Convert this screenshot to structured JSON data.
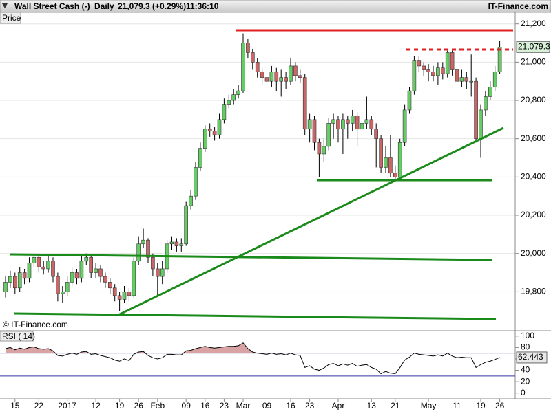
{
  "header": {
    "instrument": "Wall Street Cash (-)",
    "interval": "Daily",
    "quote": "21,079.3 (+0.29%)",
    "time": "11:36:10",
    "brand": "IT-Finance.com"
  },
  "chart_data": [
    {
      "type": "candlestick",
      "y_label": "Price",
      "watermark": "© IT-Finance.com",
      "up_color": "#66cc66",
      "down_color": "#cc6666",
      "categories": [
        null,
        null,
        "15",
        null,
        null,
        null,
        null,
        "22",
        null,
        null,
        null,
        null,
        null,
        "2017",
        null,
        null,
        null,
        null,
        null,
        "12",
        null,
        null,
        null,
        null,
        "19",
        null,
        null,
        null,
        "26",
        null,
        null,
        null,
        "Feb",
        null,
        null,
        null,
        null,
        null,
        "09",
        null,
        null,
        null,
        "16",
        null,
        null,
        null,
        "23",
        null,
        null,
        null,
        "Mar",
        null,
        null,
        null,
        null,
        "09",
        null,
        null,
        null,
        null,
        "16",
        null,
        null,
        null,
        "23",
        null,
        null,
        null,
        null,
        null,
        "Apr",
        null,
        null,
        null,
        null,
        null,
        null,
        "13",
        null,
        null,
        null,
        null,
        "21",
        null,
        null,
        null,
        null,
        null,
        null,
        "May",
        null,
        null,
        null,
        null,
        null,
        "11",
        null,
        null,
        null,
        null,
        "19",
        null,
        null,
        null,
        "26"
      ],
      "open": [
        19800,
        19850,
        19880,
        19820,
        19900,
        19870,
        19950,
        19980,
        19930,
        19920,
        19960,
        19880,
        19790,
        19800,
        19850,
        19900,
        19870,
        19960,
        19980,
        19900,
        19920,
        19880,
        19850,
        19820,
        19780,
        19760,
        19800,
        19780,
        19960,
        20050,
        20070,
        19980,
        19920,
        19880,
        19920,
        20050,
        20060,
        20040,
        20050,
        20250,
        20300,
        20450,
        20550,
        20650,
        20640,
        20620,
        20700,
        20780,
        20800,
        20830,
        20850,
        21100,
        21050,
        21000,
        20950,
        20920,
        20900,
        20950,
        20900,
        20920,
        20900,
        20980,
        20930,
        20920,
        20650,
        20700,
        20580,
        20520,
        20560,
        20680,
        20700,
        20650,
        20700,
        20680,
        20720,
        20650,
        20680,
        20700,
        20650,
        20600,
        20450,
        20500,
        20420,
        20400,
        20580,
        20750,
        20850,
        21010,
        20980,
        20960,
        20950,
        20930,
        20970,
        20940,
        21050,
        20960,
        20900,
        20920,
        20900,
        20900,
        20600,
        20750,
        20820,
        20870,
        20950
      ],
      "high": [
        19880,
        19910,
        19900,
        19930,
        19920,
        19980,
        20000,
        20000,
        19960,
        19990,
        19980,
        19900,
        19830,
        19880,
        19930,
        19920,
        19990,
        20000,
        19990,
        19950,
        19940,
        19900,
        19870,
        19840,
        19800,
        19830,
        19820,
        19980,
        20090,
        20130,
        20080,
        20000,
        19950,
        19960,
        20070,
        20090,
        20080,
        20080,
        20270,
        20330,
        20480,
        20580,
        20670,
        20680,
        20660,
        20730,
        20810,
        20830,
        20860,
        20880,
        21150,
        21120,
        21070,
        21020,
        20970,
        20950,
        20980,
        20970,
        20960,
        20950,
        21020,
        21000,
        20960,
        20940,
        20730,
        20720,
        20600,
        20600,
        20710,
        20730,
        20720,
        20730,
        20720,
        20750,
        20740,
        20710,
        20820,
        20720,
        20680,
        20620,
        20560,
        20620,
        20460,
        20600,
        20780,
        20870,
        21030,
        21030,
        21000,
        20990,
        20980,
        21000,
        21000,
        21060,
        21060,
        21000,
        20960,
        20950,
        21040,
        20920,
        20780,
        20850,
        20900,
        20980,
        21110
      ],
      "low": [
        19770,
        19820,
        19790,
        19800,
        19840,
        19850,
        19930,
        19900,
        19890,
        19900,
        19850,
        19750,
        19740,
        19780,
        19830,
        19840,
        19850,
        19940,
        19870,
        19870,
        19850,
        19820,
        19790,
        19750,
        19700,
        19740,
        19750,
        19770,
        19940,
        20030,
        19950,
        19880,
        19780,
        19840,
        19900,
        20020,
        20010,
        20010,
        20040,
        20230,
        20280,
        20430,
        20530,
        20610,
        20590,
        20600,
        20680,
        20760,
        20780,
        20810,
        20840,
        21020,
        20960,
        20920,
        20880,
        20800,
        20870,
        20850,
        20820,
        20860,
        20880,
        20900,
        20890,
        20620,
        20580,
        20540,
        20400,
        20480,
        20540,
        20600,
        20580,
        20520,
        20600,
        20640,
        20560,
        20560,
        20650,
        20620,
        20450,
        20420,
        20420,
        20400,
        20380,
        20390,
        20560,
        20730,
        20830,
        20950,
        20930,
        20900,
        20900,
        20880,
        20910,
        20920,
        20930,
        20870,
        20870,
        20860,
        20820,
        20580,
        20500,
        20720,
        20800,
        20850,
        20940
      ],
      "close": [
        19850,
        19880,
        19820,
        19900,
        19870,
        19950,
        19980,
        19930,
        19920,
        19960,
        19880,
        19790,
        19800,
        19850,
        19900,
        19870,
        19960,
        19980,
        19900,
        19920,
        19880,
        19850,
        19820,
        19780,
        19760,
        19800,
        19780,
        19960,
        20050,
        20070,
        19980,
        19920,
        19880,
        19920,
        20050,
        20060,
        20040,
        20050,
        20250,
        20300,
        20450,
        20550,
        20650,
        20640,
        20620,
        20700,
        20780,
        20800,
        20830,
        20850,
        21100,
        21050,
        21000,
        20950,
        20920,
        20900,
        20950,
        20900,
        20920,
        20900,
        20980,
        20930,
        20920,
        20650,
        20700,
        20580,
        20520,
        20560,
        20680,
        20700,
        20650,
        20700,
        20680,
        20720,
        20650,
        20680,
        20700,
        20650,
        20600,
        20450,
        20500,
        20420,
        20400,
        20580,
        20750,
        20850,
        21010,
        20980,
        20960,
        20950,
        20930,
        20970,
        20940,
        21050,
        20960,
        20900,
        20920,
        20900,
        20900,
        20600,
        20750,
        20820,
        20870,
        20950,
        21079
      ],
      "ylim": [
        19600,
        21260
      ],
      "yticks": [
        {
          "value": 19800,
          "label": "19,800"
        },
        {
          "value": 20000,
          "label": "20,000"
        },
        {
          "value": 20200,
          "label": "20,200"
        },
        {
          "value": 20400,
          "label": "20,400"
        },
        {
          "value": 20600,
          "label": "20,600"
        },
        {
          "value": 20800,
          "label": "20,800"
        },
        {
          "value": 21000,
          "label": "21,000"
        },
        {
          "value": 21200,
          "label": "21,200"
        }
      ],
      "grid": true,
      "last_price": {
        "value": 21079.3,
        "label": "21,079.3"
      }
    },
    {
      "type": "line",
      "title": "RSI ( 14)",
      "color": "#000000",
      "overbought_fill": "#d9a3a3",
      "ref_color": "#3333aa",
      "values": [
        78,
        80,
        76,
        79,
        77,
        80,
        81,
        78,
        77,
        78,
        74,
        66,
        65,
        68,
        70,
        68,
        72,
        73,
        68,
        69,
        66,
        64,
        62,
        58,
        56,
        60,
        57,
        68,
        72,
        73,
        66,
        62,
        60,
        62,
        68,
        68,
        67,
        67,
        74,
        75,
        78,
        80,
        82,
        80,
        79,
        80,
        81,
        82,
        82,
        83,
        88,
        78,
        72,
        70,
        69,
        68,
        70,
        68,
        69,
        67,
        70,
        67,
        66,
        45,
        48,
        42,
        40,
        44,
        50,
        52,
        48,
        51,
        49,
        52,
        47,
        49,
        50,
        45,
        42,
        34,
        38,
        35,
        34,
        45,
        58,
        63,
        70,
        68,
        67,
        66,
        65,
        67,
        65,
        70,
        65,
        62,
        63,
        62,
        62,
        45,
        50,
        54,
        56,
        59,
        62.443
      ],
      "ylim": [
        -10,
        107
      ],
      "yticks": [
        0,
        20,
        40,
        60,
        80,
        100
      ],
      "ref_lines": [
        30,
        70
      ],
      "last_value": {
        "value": 62.443,
        "label": "62.443"
      }
    }
  ]
}
